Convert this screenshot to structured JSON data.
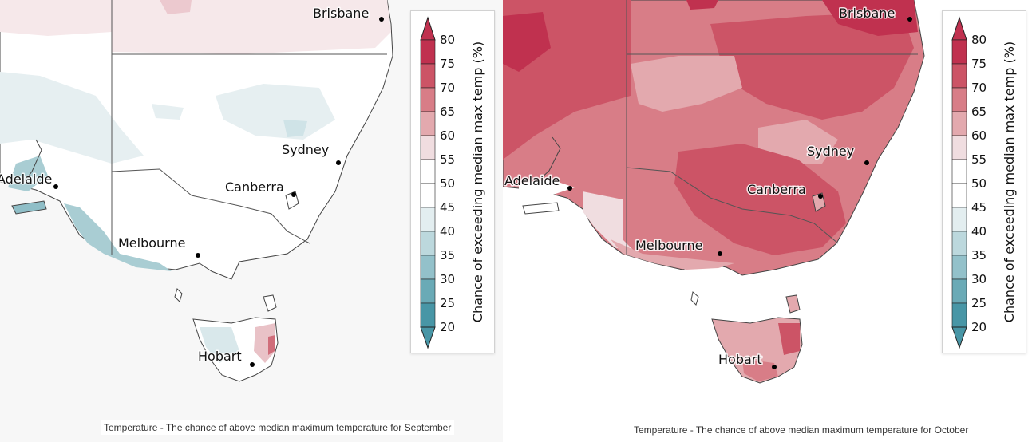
{
  "legend": {
    "title": "Chance of exceeding median max temp (%)",
    "ticks": [
      "80",
      "75",
      "70",
      "65",
      "60",
      "55",
      "50",
      "45",
      "40",
      "35",
      "30",
      "25",
      "20"
    ],
    "bands": [
      {
        "range": "75-80+",
        "color": "#c0314f"
      },
      {
        "range": "70-75",
        "color": "#cc5466"
      },
      {
        "range": "65-70",
        "color": "#d87d87"
      },
      {
        "range": "60-65",
        "color": "#e3a9ae"
      },
      {
        "range": "55-60",
        "color": "#f0dde0"
      },
      {
        "range": "50-55",
        "color": "#ffffff"
      },
      {
        "range": "45-50",
        "color": "#ffffff"
      },
      {
        "range": "40-45",
        "color": "#e3eef0"
      },
      {
        "range": "35-40",
        "color": "#bcd8dd"
      },
      {
        "range": "30-35",
        "color": "#93c1ca"
      },
      {
        "range": "25-30",
        "color": "#6aaab6"
      },
      {
        "range": "20-25",
        "color": "#4896a6"
      }
    ]
  },
  "maps": {
    "september": {
      "caption": "Temperature - The chance of above median maximum temperature for September",
      "cities": {
        "brisbane": "Brisbane",
        "sydney": "Sydney",
        "canberra": "Canberra",
        "adelaide": "Adelaide",
        "melbourne": "Melbourne",
        "hobart": "Hobart"
      },
      "overall_tone": "near-neutral (45-55%)"
    },
    "october": {
      "caption": "Temperature - The chance of above median maximum temperature for October",
      "cities": {
        "brisbane": "Brisbane",
        "sydney": "Sydney",
        "canberra": "Canberra",
        "adelaide": "Adelaide",
        "melbourne": "Melbourne",
        "hobart": "Hobart"
      },
      "overall_tone": "warm (60-80%)"
    }
  }
}
